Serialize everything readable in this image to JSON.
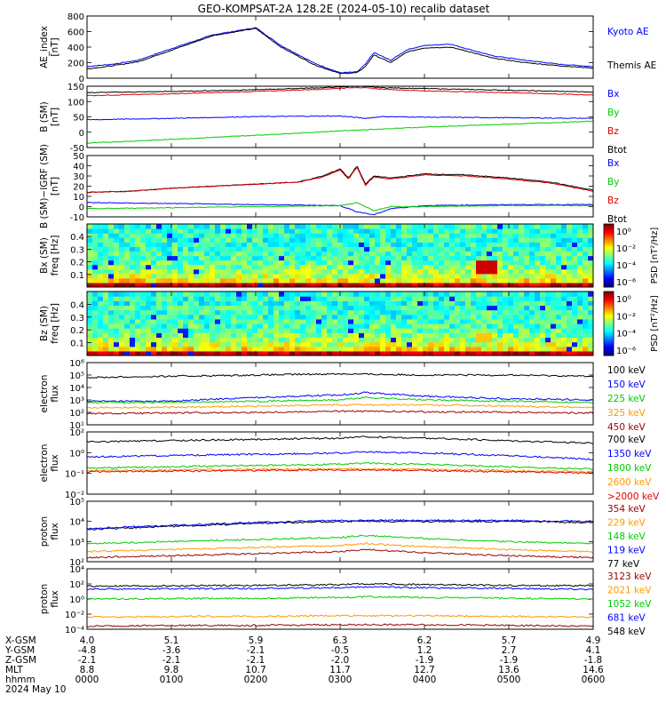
{
  "title": "GEO-KOMPSAT-2A 128.2E (2024-05-10) recalib dataset",
  "colors": {
    "black": "#000000",
    "blue": "#0000ff",
    "green": "#00cc00",
    "red": "#dd0000",
    "orange": "#ff9900",
    "darkred": "#990000",
    "lime": "#00dd44"
  },
  "x_ticks": [
    "0000",
    "0100",
    "0200",
    "0300",
    "0400",
    "0500",
    "0600"
  ],
  "ephemeris": {
    "labels": [
      "X-GSM",
      "Y-GSM",
      "Z-GSM",
      "MLT",
      "hhmm"
    ],
    "date": "2024 May 10",
    "rows": [
      [
        "4.0",
        "5.1",
        "5.9",
        "6.3",
        "6.2",
        "5.7",
        "4.9"
      ],
      [
        "-4.8",
        "-3.6",
        "-2.1",
        "-0.5",
        "1.2",
        "2.7",
        "4.1"
      ],
      [
        "-2.1",
        "-2.1",
        "-2.1",
        "-2.0",
        "-1.9",
        "-1.9",
        "-1.8"
      ],
      [
        "8.8",
        "9.8",
        "10.7",
        "11.7",
        "12.7",
        "13.6",
        "14.6"
      ],
      [
        "0000",
        "0100",
        "0200",
        "0300",
        "0400",
        "0500",
        "0600"
      ]
    ]
  },
  "chart_data": [
    {
      "type": "line",
      "ylabel": [
        "AE_index",
        "[nT]"
      ],
      "ylim": [
        0,
        800
      ],
      "yticks": [
        "800",
        "600",
        "400",
        "200",
        "0"
      ],
      "legend": [
        {
          "name": "Kyoto AE",
          "color": "#0000ff"
        },
        {
          "name": "Themis AE",
          "color": "#000000"
        }
      ],
      "series": [
        {
          "name": "Kyoto AE",
          "color": "#0000ff",
          "x": [
            0,
            0.3,
            0.6,
            1.0,
            1.5,
            2.0,
            2.3,
            2.7,
            3.0,
            3.2,
            3.3,
            3.4,
            3.6,
            3.8,
            4.0,
            4.3,
            4.5,
            4.8,
            5.2,
            5.6,
            6.0
          ],
          "values": [
            150,
            180,
            230,
            380,
            560,
            650,
            420,
            190,
            70,
            80,
            180,
            330,
            230,
            370,
            420,
            440,
            380,
            290,
            230,
            180,
            150
          ]
        },
        {
          "name": "Themis AE",
          "color": "#000000",
          "x": [
            0,
            0.3,
            0.6,
            1.0,
            1.5,
            2.0,
            2.3,
            2.7,
            3.0,
            3.2,
            3.3,
            3.4,
            3.6,
            3.8,
            4.0,
            4.3,
            4.5,
            4.8,
            5.2,
            5.6,
            6.0
          ],
          "values": [
            120,
            160,
            210,
            360,
            550,
            640,
            400,
            170,
            60,
            70,
            150,
            300,
            200,
            340,
            390,
            400,
            350,
            260,
            200,
            160,
            130
          ]
        }
      ]
    },
    {
      "type": "line",
      "ylabel": [
        "B (SM)",
        "[nT]"
      ],
      "ylim": [
        -60,
        150
      ],
      "yticks": [
        "150",
        "100",
        "50",
        "0",
        "-50"
      ],
      "legend": [
        {
          "name": "Bx",
          "color": "#0000ff"
        },
        {
          "name": "By",
          "color": "#00cc00"
        },
        {
          "name": "Bz",
          "color": "#dd0000"
        },
        {
          "name": "Btot",
          "color": "#000000"
        }
      ],
      "series": [
        {
          "name": "Btot",
          "color": "#000000",
          "x": [
            0,
            1,
            2,
            2.8,
            3.2,
            3.5,
            4,
            5,
            6
          ],
          "values": [
            128,
            132,
            138,
            145,
            150,
            145,
            142,
            136,
            130
          ]
        },
        {
          "name": "Bz",
          "color": "#dd0000",
          "x": [
            0,
            1,
            2,
            2.8,
            3.2,
            3.5,
            4,
            5,
            6
          ],
          "values": [
            118,
            124,
            132,
            140,
            146,
            140,
            134,
            128,
            120
          ]
        },
        {
          "name": "Bx",
          "color": "#0000ff",
          "x": [
            0,
            1,
            2,
            3,
            3.3,
            3.5,
            4,
            5,
            6
          ],
          "values": [
            35,
            40,
            46,
            48,
            40,
            46,
            44,
            42,
            40
          ]
        },
        {
          "name": "By",
          "color": "#00cc00",
          "x": [
            0,
            1,
            2,
            3,
            4,
            5,
            6
          ],
          "values": [
            -45,
            -32,
            -18,
            -3,
            10,
            20,
            30
          ]
        }
      ]
    },
    {
      "type": "line",
      "ylabel": [
        "B (SM)−IGRF (SM)",
        "[nT]"
      ],
      "ylim": [
        -10,
        50
      ],
      "yticks": [
        "50",
        "40",
        "30",
        "20",
        "10",
        "0",
        "-10"
      ],
      "legend": [
        {
          "name": "Bx",
          "color": "#0000ff"
        },
        {
          "name": "By",
          "color": "#00cc00"
        },
        {
          "name": "Bz",
          "color": "#dd0000"
        },
        {
          "name": "Btot",
          "color": "#000000"
        }
      ],
      "series": [
        {
          "name": "Btot",
          "color": "#000000",
          "x": [
            0,
            0.5,
            1,
            1.5,
            2,
            2.5,
            2.8,
            3.0,
            3.1,
            3.2,
            3.3,
            3.4,
            3.6,
            4,
            4.5,
            5,
            5.5,
            6
          ],
          "values": [
            14,
            15,
            18,
            20,
            22,
            24,
            30,
            37,
            28,
            40,
            22,
            30,
            28,
            32,
            31,
            28,
            24,
            16
          ]
        },
        {
          "name": "Bz",
          "color": "#dd0000",
          "x": [
            0,
            0.5,
            1,
            1.5,
            2,
            2.5,
            2.8,
            3.0,
            3.1,
            3.2,
            3.3,
            3.4,
            3.6,
            4,
            4.5,
            5,
            5.5,
            6
          ],
          "values": [
            14,
            15,
            18,
            20,
            22,
            24,
            29,
            36,
            27,
            39,
            21,
            29,
            27,
            31,
            30,
            27,
            23,
            15
          ]
        },
        {
          "name": "Bx",
          "color": "#0000ff",
          "x": [
            0,
            1,
            2,
            3,
            3.2,
            3.4,
            3.6,
            4,
            5,
            6
          ],
          "values": [
            4,
            3,
            2,
            1,
            -5,
            -8,
            -2,
            1,
            2,
            2
          ]
        },
        {
          "name": "By",
          "color": "#00cc00",
          "x": [
            0,
            1,
            2,
            3,
            3.2,
            3.4,
            3.6,
            4,
            5,
            6
          ],
          "values": [
            -2,
            -1,
            0,
            1,
            4,
            -4,
            0,
            0,
            1,
            1
          ]
        }
      ]
    },
    {
      "type": "heatmap",
      "ylabel": [
        "Bx (SM)",
        "freq [Hz]"
      ],
      "ylim": [
        0,
        0.5
      ],
      "yticks": [
        "0.4",
        "0.3",
        "0.2",
        "0.1"
      ],
      "colorbar": {
        "label": "PSD [nT²/Hz]",
        "ticks": [
          "10⁰",
          "10⁻²",
          "10⁻⁴",
          "10⁻⁶"
        ]
      }
    },
    {
      "type": "heatmap",
      "ylabel": [
        "Bz (SM)",
        "freq [Hz]"
      ],
      "ylim": [
        0,
        0.5
      ],
      "yticks": [
        "0.4",
        "0.3",
        "0.2",
        "0.1"
      ],
      "colorbar": {
        "label": "PSD [nT²/Hz]",
        "ticks": [
          "10⁰",
          "10⁻²",
          "10⁻⁴",
          "10⁻⁶"
        ]
      }
    },
    {
      "type": "line",
      "ylabel": [
        "electron",
        "flux"
      ],
      "log": true,
      "ylim": [
        1,
        6
      ],
      "yticks": [
        "10⁶",
        "10⁵",
        "10⁴",
        "10³",
        "10²",
        "10¹"
      ],
      "legend": [
        {
          "name": "100 keV",
          "color": "#000000"
        },
        {
          "name": "150 keV",
          "color": "#0000ff"
        },
        {
          "name": "225 keV",
          "color": "#00cc00"
        },
        {
          "name": "325 keV",
          "color": "#ff9900"
        },
        {
          "name": "450 keV",
          "color": "#990000"
        }
      ],
      "series": [
        {
          "name": "100 keV",
          "color": "#000000",
          "x": [
            0,
            1,
            2,
            3,
            4,
            5,
            6
          ],
          "values": [
            4.8,
            4.9,
            5.0,
            5.1,
            5.0,
            5.0,
            4.9
          ]
        },
        {
          "name": "150 keV",
          "color": "#0000ff",
          "x": [
            0,
            1,
            2,
            3,
            3.3,
            4,
            5,
            6
          ],
          "values": [
            2.9,
            2.9,
            3.2,
            3.4,
            3.6,
            3.3,
            3.1,
            3.0
          ]
        },
        {
          "name": "225 keV",
          "color": "#00cc00",
          "x": [
            0,
            1,
            2,
            3,
            3.3,
            4,
            5,
            6
          ],
          "values": [
            2.8,
            2.8,
            2.9,
            3.0,
            3.2,
            3.0,
            2.9,
            2.8
          ]
        },
        {
          "name": "325 keV",
          "color": "#ff9900",
          "x": [
            0,
            1,
            2,
            3,
            4,
            5,
            6
          ],
          "values": [
            2.4,
            2.4,
            2.5,
            2.6,
            2.6,
            2.5,
            2.4
          ]
        },
        {
          "name": "450 keV",
          "color": "#990000",
          "x": [
            0,
            1,
            2,
            3,
            4,
            5,
            6
          ],
          "values": [
            1.9,
            1.95,
            2.0,
            2.1,
            2.05,
            2.0,
            1.95
          ]
        }
      ]
    },
    {
      "type": "line",
      "ylabel": [
        "electron",
        "flux"
      ],
      "log": true,
      "ylim": [
        -3,
        2
      ],
      "yticks": [
        "10²",
        "10⁰",
        "10⁻¹",
        "10⁻²"
      ],
      "legend": [
        {
          "name": "700 keV",
          "color": "#000000"
        },
        {
          "name": "1350 keV",
          "color": "#0000ff"
        },
        {
          "name": "1800 keV",
          "color": "#00cc00"
        },
        {
          "name": "2600 keV",
          "color": "#ff9900"
        },
        {
          "name": ">2000 keV",
          "color": "#dd0000"
        }
      ],
      "series": [
        {
          "name": "700 keV",
          "color": "#000000",
          "x": [
            0,
            1,
            2,
            3,
            3.3,
            4,
            5,
            6
          ],
          "values": [
            1.2,
            1.3,
            1.4,
            1.5,
            1.6,
            1.5,
            1.3,
            1.1
          ]
        },
        {
          "name": "1350 keV",
          "color": "#0000ff",
          "x": [
            0,
            1,
            2,
            3,
            3.3,
            4,
            5,
            6
          ],
          "values": [
            0.0,
            0.1,
            0.2,
            0.3,
            0.4,
            0.3,
            0.1,
            -0.2
          ]
        },
        {
          "name": "1800 keV",
          "color": "#00cc00",
          "x": [
            0,
            1,
            2,
            3,
            3.3,
            4,
            5,
            6
          ],
          "values": [
            -0.9,
            -0.8,
            -0.7,
            -0.6,
            -0.5,
            -0.6,
            -0.8,
            -1.0
          ]
        },
        {
          "name": "2600 keV",
          "color": "#ff9900",
          "x": [
            0,
            1,
            2,
            3,
            4,
            5,
            6
          ],
          "values": [
            -1.1,
            -1.05,
            -1.0,
            -0.95,
            -1.0,
            -1.1,
            -1.2
          ]
        },
        {
          "name": ">2000 keV",
          "color": "#dd0000",
          "x": [
            0,
            1,
            2,
            3,
            4,
            5,
            6
          ],
          "values": [
            -1.2,
            -1.15,
            -1.1,
            -1.05,
            -1.1,
            -1.2,
            -1.3
          ]
        }
      ]
    },
    {
      "type": "line",
      "ylabel": [
        "proton",
        "flux"
      ],
      "log": true,
      "ylim": [
        2,
        5
      ],
      "yticks": [
        "10⁵",
        "10⁴",
        "10³",
        "10²"
      ],
      "legend": [
        {
          "name": "354 keV",
          "color": "#990000"
        },
        {
          "name": "229 keV",
          "color": "#ff9900"
        },
        {
          "name": "148 keV",
          "color": "#00cc00"
        },
        {
          "name": "119 keV",
          "color": "#0000ff"
        },
        {
          "name": "77 keV",
          "color": "#000000"
        }
      ],
      "series": [
        {
          "name": "77 keV",
          "color": "#000000",
          "x": [
            0,
            1,
            2,
            3,
            4,
            5,
            6
          ],
          "values": [
            3.6,
            3.75,
            3.9,
            4.0,
            4.0,
            4.0,
            3.95
          ]
        },
        {
          "name": "119 keV",
          "color": "#0000ff",
          "x": [
            0,
            1,
            2,
            3,
            4,
            5,
            6
          ],
          "values": [
            3.65,
            3.8,
            3.95,
            4.05,
            4.05,
            4.05,
            4.0
          ]
        },
        {
          "name": "148 keV",
          "color": "#00cc00",
          "x": [
            0,
            1,
            2,
            3,
            3.3,
            4,
            5,
            6
          ],
          "values": [
            2.9,
            3.0,
            3.1,
            3.2,
            3.3,
            3.15,
            3.0,
            2.9
          ]
        },
        {
          "name": "229 keV",
          "color": "#ff9900",
          "x": [
            0,
            1,
            2,
            3,
            3.3,
            4,
            5,
            6
          ],
          "values": [
            2.5,
            2.6,
            2.7,
            2.8,
            2.9,
            2.75,
            2.6,
            2.5
          ]
        },
        {
          "name": "354 keV",
          "color": "#990000",
          "x": [
            0,
            1,
            2,
            3,
            3.3,
            4,
            5,
            6
          ],
          "values": [
            2.2,
            2.3,
            2.4,
            2.5,
            2.6,
            2.45,
            2.3,
            2.2
          ]
        }
      ]
    },
    {
      "type": "line",
      "ylabel": [
        "proton",
        "flux"
      ],
      "log": true,
      "ylim": [
        -4,
        4
      ],
      "yticks": [
        "10⁴",
        "10²",
        "10⁰",
        "10⁻²",
        "10⁻⁴"
      ],
      "legend": [
        {
          "name": "3123 keV",
          "color": "#990000"
        },
        {
          "name": "2021 keV",
          "color": "#ff9900"
        },
        {
          "name": "1052 keV",
          "color": "#00cc00"
        },
        {
          "name": "681 keV",
          "color": "#0000ff"
        },
        {
          "name": "548 keV",
          "color": "#000000"
        }
      ],
      "series": [
        {
          "name": "548 keV",
          "color": "#000000",
          "x": [
            0,
            1,
            2,
            3,
            3.3,
            4,
            5,
            6
          ],
          "values": [
            1.7,
            1.75,
            1.8,
            1.9,
            2.0,
            1.9,
            1.8,
            1.75
          ]
        },
        {
          "name": "681 keV",
          "color": "#0000ff",
          "x": [
            0,
            1,
            2,
            3,
            3.3,
            4,
            5,
            6
          ],
          "values": [
            1.3,
            1.35,
            1.4,
            1.5,
            1.6,
            1.5,
            1.4,
            1.3
          ]
        },
        {
          "name": "1052 keV",
          "color": "#00cc00",
          "x": [
            0,
            1,
            2,
            3,
            3.3,
            4,
            5,
            6
          ],
          "values": [
            0.0,
            0.05,
            0.1,
            0.2,
            0.3,
            0.2,
            0.1,
            0.0
          ]
        },
        {
          "name": "2021 keV",
          "color": "#ff9900",
          "x": [
            0,
            1,
            2,
            3,
            4,
            5,
            6
          ],
          "values": [
            -2.4,
            -2.3,
            -2.3,
            -2.2,
            -2.2,
            -2.3,
            -2.4
          ]
        },
        {
          "name": "3123 keV",
          "color": "#990000",
          "x": [
            0,
            1,
            2,
            3,
            4,
            5,
            6
          ],
          "values": [
            -3.6,
            -3.5,
            -3.5,
            -3.4,
            -3.4,
            -3.5,
            -3.6
          ]
        }
      ]
    }
  ]
}
